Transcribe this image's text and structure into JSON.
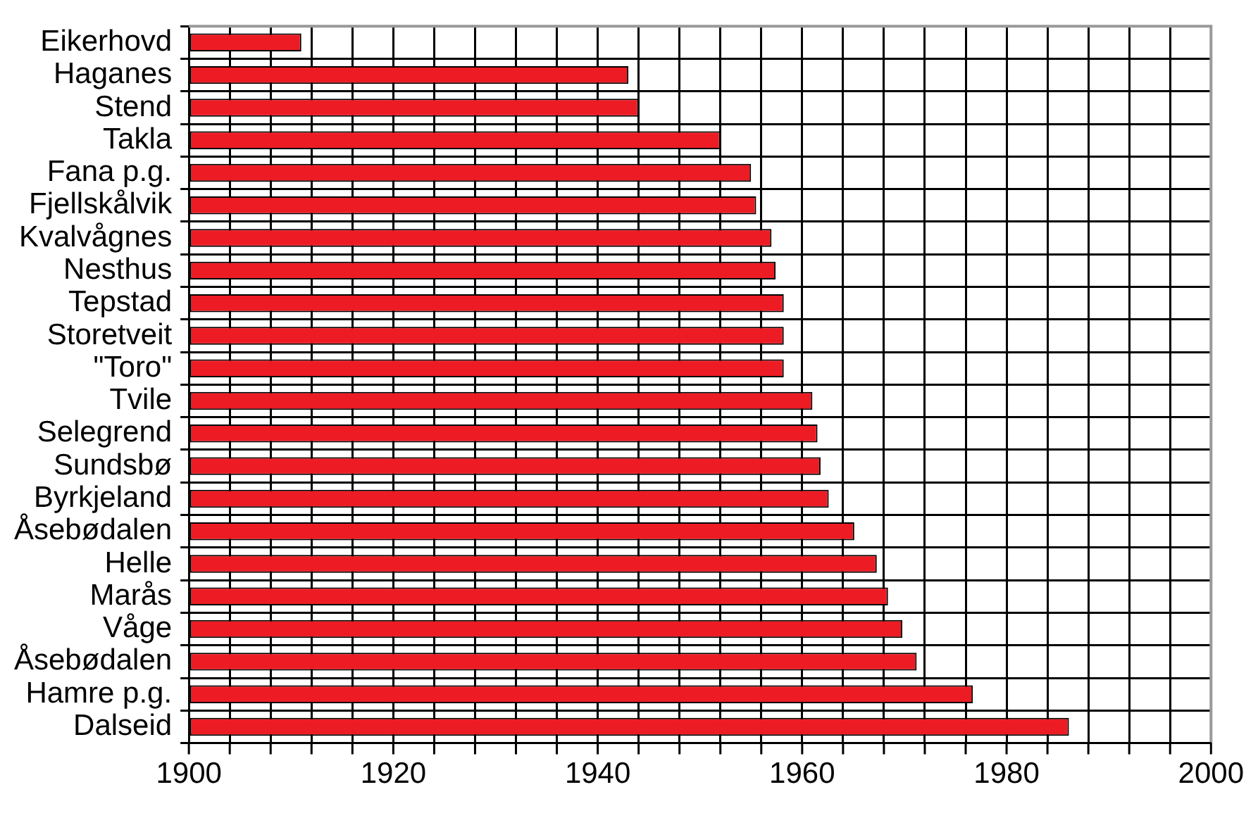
{
  "chart_data": {
    "type": "bar",
    "orientation": "horizontal",
    "categories": [
      "Eikerhovd",
      "Haganes",
      "Stend",
      "Takla",
      "Fana p.g.",
      "Fjellskålvik",
      "Kvalvågnes",
      "Nesthus",
      "Tepstad",
      "Storetveit",
      "\"Toro\"",
      "Tvile",
      "Selegrend",
      "Sundsbø",
      "Byrkjeland",
      "Åsebødalen",
      "Helle",
      "Marås",
      "Våge",
      "Åsebødalen",
      "Hamre p.g.",
      "Dalseid"
    ],
    "values": [
      1911,
      1943,
      1944,
      1952,
      1955,
      1955.5,
      1957,
      1957.4,
      1958.2,
      1958.2,
      1958.2,
      1961,
      1961.5,
      1961.8,
      1962.6,
      1965.1,
      1967.3,
      1968.4,
      1969.8,
      1971.2,
      1976.7,
      1986.1
    ],
    "color": "#ed1c24",
    "xlim": [
      1900,
      2000
    ],
    "xticks": [
      1900,
      {
        "value": 1904,
        "label": null
      },
      {
        "value": 1908,
        "label": null
      },
      {
        "value": 1912,
        "label": null
      },
      {
        "value": 1916,
        "label": null
      },
      1920,
      {
        "value": 1924,
        "label": null
      },
      {
        "value": 1928,
        "label": null
      },
      {
        "value": 1932,
        "label": null
      },
      {
        "value": 1936,
        "label": null
      },
      1940,
      {
        "value": 1944,
        "label": null
      },
      {
        "value": 1948,
        "label": null
      },
      {
        "value": 1952,
        "label": null
      },
      {
        "value": 1956,
        "label": null
      },
      1960,
      {
        "value": 1964,
        "label": null
      },
      {
        "value": 1968,
        "label": null
      },
      {
        "value": 1972,
        "label": null
      },
      {
        "value": 1976,
        "label": null
      },
      1980,
      {
        "value": 1984,
        "label": null
      },
      {
        "value": 1988,
        "label": null
      },
      {
        "value": 1992,
        "label": null
      },
      {
        "value": 1996,
        "label": null
      },
      2000
    ],
    "grid": true
  }
}
